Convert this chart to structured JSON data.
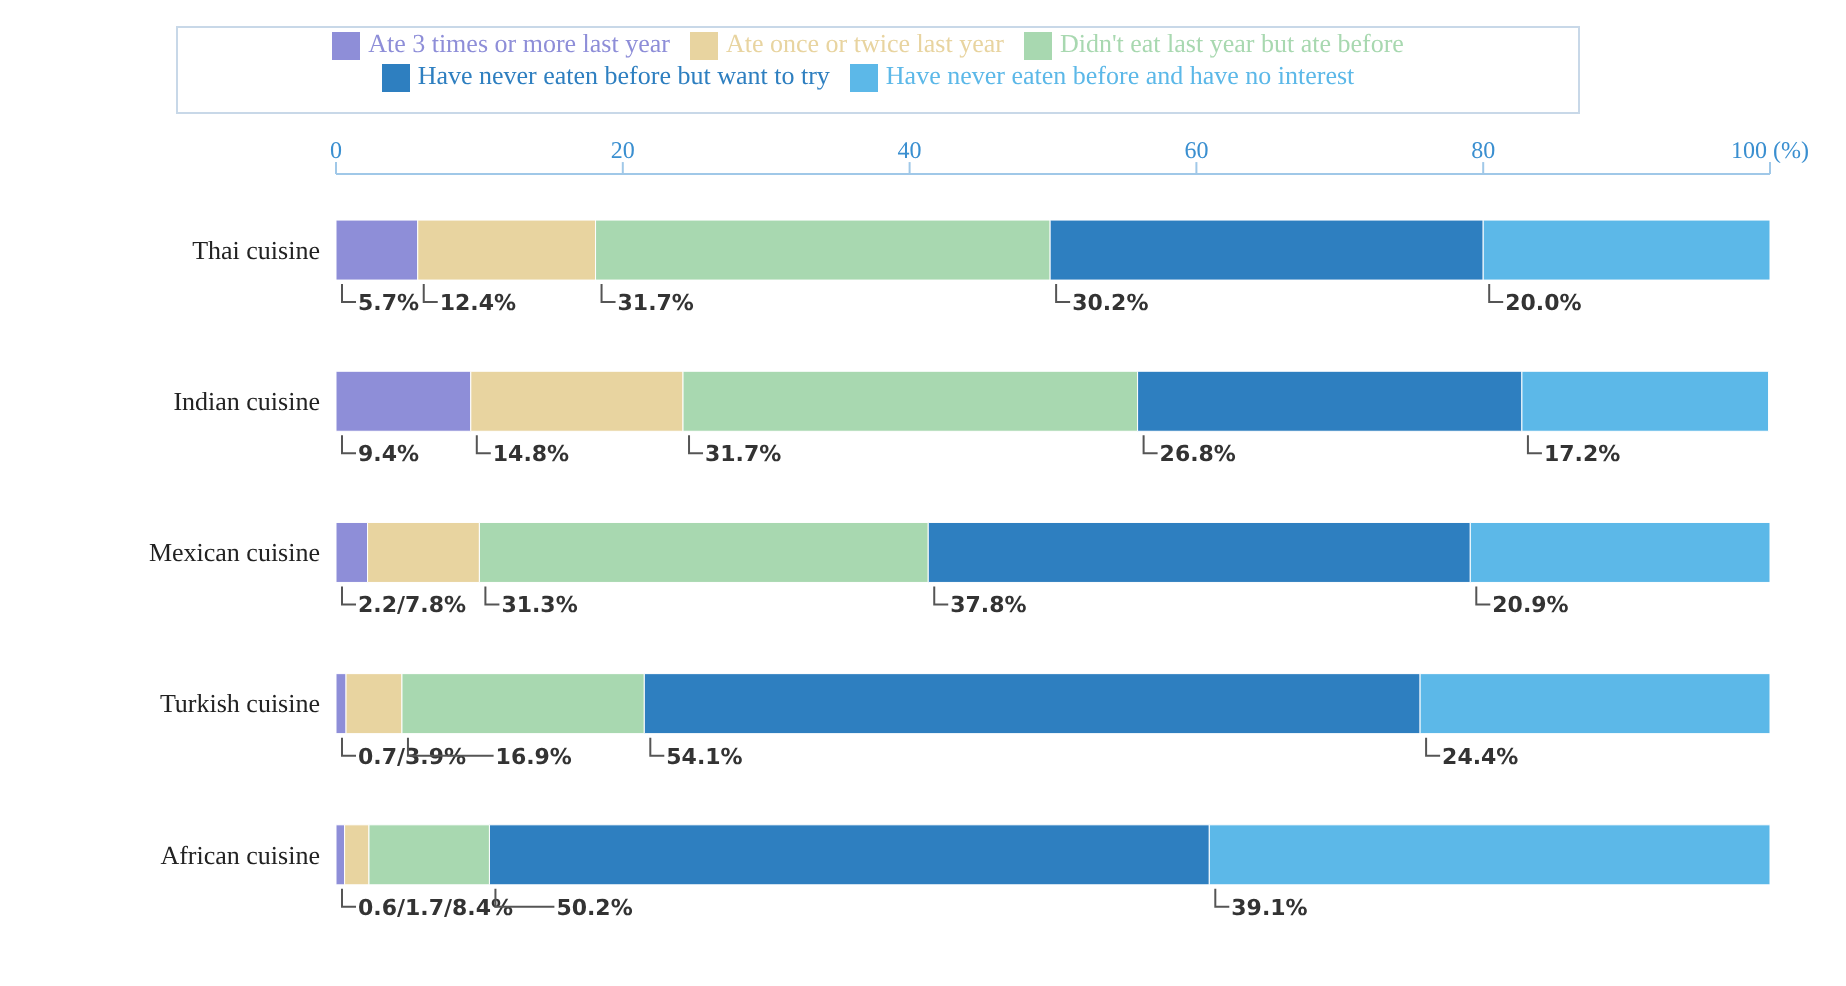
{
  "chart_data": {
    "type": "bar",
    "orientation": "horizontal",
    "stacked": true,
    "categories": [
      "Thai cuisine",
      "Indian cuisine",
      "Mexican cuisine",
      "Turkish cuisine",
      "African cuisine"
    ],
    "series": [
      {
        "name": "Ate 3 times or more last year",
        "color": "#8e8ed8",
        "values": [
          5.7,
          9.4,
          2.2,
          0.7,
          0.6
        ],
        "value_labels": [
          "5.7%",
          "9.4%",
          "2.2/7.8%",
          "0.7/3.9%",
          "0.6/1.7/8.4%"
        ]
      },
      {
        "name": "Ate once or twice last year",
        "color": "#e8d4a0",
        "values": [
          12.4,
          14.8,
          7.8,
          3.9,
          1.7
        ],
        "value_labels": [
          "12.4%",
          "14.8%",
          null,
          null,
          null
        ]
      },
      {
        "name": "Didn't eat last year but ate before",
        "color": "#a8d8b0",
        "values": [
          31.7,
          31.7,
          31.3,
          16.9,
          8.4
        ],
        "value_labels": [
          "31.7%",
          "31.7%",
          "31.3%",
          "16.9%",
          null
        ]
      },
      {
        "name": "Have never eaten before but want to try",
        "color": "#2e7fc0",
        "values": [
          30.2,
          26.8,
          37.8,
          54.1,
          50.2
        ],
        "value_labels": [
          "30.2%",
          "26.8%",
          "37.8%",
          "54.1%",
          "50.2%"
        ]
      },
      {
        "name": "Have never eaten before and have no interest",
        "color": "#5cb8e8",
        "values": [
          20.0,
          17.2,
          20.9,
          24.4,
          39.1
        ],
        "value_labels": [
          "20.0%",
          "17.2%",
          "20.9%",
          "24.4%",
          "39.1%"
        ]
      }
    ],
    "xlim": [
      0,
      100
    ],
    "xticks": [
      0,
      20,
      40,
      60,
      80,
      {
        "value": 100,
        "label": "100 (%)"
      }
    ],
    "grid": false,
    "legend": "top"
  }
}
